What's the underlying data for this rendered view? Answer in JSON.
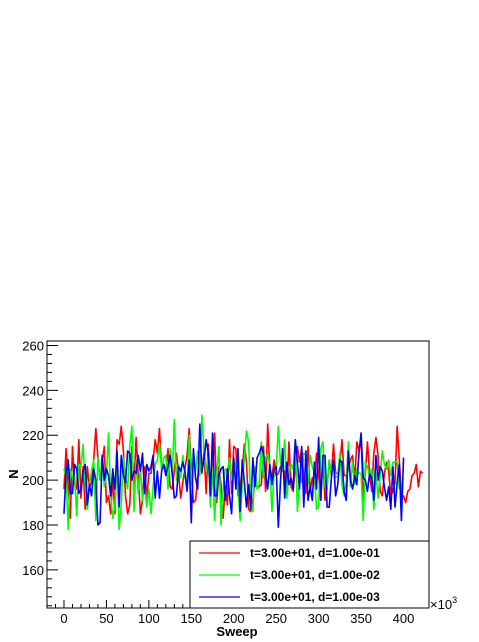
{
  "chart_data": {
    "type": "line",
    "title": "",
    "xlabel": "Sweep",
    "ylabel": "N",
    "x_multiplier": "×10",
    "x_multiplier_exp": "3",
    "xlim": [
      -20,
      430
    ],
    "ylim": [
      143,
      262
    ],
    "x_ticks": [
      0,
      50,
      100,
      150,
      200,
      250,
      300,
      350,
      400
    ],
    "y_ticks": [
      160,
      180,
      200,
      220,
      240,
      260
    ],
    "grid": false,
    "legend_position": "bottom-right",
    "sample_step": 2.5,
    "series": [
      {
        "name": "t=3.00e+01, d=1.00e-01",
        "color": "#ff0000",
        "x_start": 0,
        "values": [
          196,
          214,
          197,
          183,
          215,
          198,
          196,
          218,
          192,
          206,
          187,
          206,
          197,
          199,
          209,
          223,
          210,
          200,
          208,
          215,
          190,
          193,
          185,
          201,
          185,
          218,
          216,
          224,
          213,
          193,
          185,
          189,
          215,
          198,
          219,
          202,
          185,
          191,
          206,
          192,
          203,
          203,
          209,
          218,
          212,
          223,
          205,
          207,
          204,
          214,
          197,
          196,
          204,
          212,
          203,
          192,
          199,
          205,
          211,
          223,
          205,
          190,
          191,
          201,
          206,
          203,
          213,
          194,
          216,
          196,
          202,
          221,
          190,
          206,
          198,
          183,
          197,
          189,
          218,
          194,
          215,
          214,
          193,
          197,
          205,
          216,
          208,
          187,
          186,
          191,
          200,
          197,
          197,
          198,
          215,
          195,
          225,
          205,
          201,
          209,
          202,
          203,
          206,
          204,
          204,
          193,
          217,
          197,
          195,
          206,
          215,
          208,
          214,
          201,
          194,
          215,
          195,
          201,
          198,
          212,
          202,
          191,
          210,
          191,
          197,
          209,
          202,
          216,
          203,
          203,
          207,
          218,
          202,
          202,
          205,
          209,
          211,
          200,
          217,
          213,
          219,
          192,
          203,
          217,
          203,
          195,
          212,
          219,
          211,
          195,
          193,
          203,
          208,
          204,
          193,
          195,
          199,
          224,
          209,
          193,
          193,
          190,
          195,
          196,
          202,
          203,
          207,
          197,
          204,
          203
        ]
      },
      {
        "name": "t=3.00e+01, d=1.00e-02",
        "color": "#00ff00",
        "x_start": 0,
        "values": [
          205,
          201,
          178,
          205,
          201,
          202,
          184,
          207,
          206,
          216,
          197,
          187,
          198,
          204,
          209,
          182,
          210,
          200,
          210,
          197,
          202,
          221,
          193,
          183,
          189,
          208,
          178,
          189,
          210,
          201,
          196,
          215,
          224,
          186,
          209,
          194,
          205,
          191,
          199,
          188,
          196,
          185,
          197,
          207,
          209,
          216,
          205,
          210,
          211,
          196,
          214,
          202,
          227,
          200,
          207,
          201,
          211,
          202,
          196,
          220,
          198,
          210,
          204,
          213,
          202,
          229,
          213,
          204,
          211,
          188,
          206,
          182,
          203,
          215,
          180,
          196,
          205,
          204,
          210,
          200,
          205,
          208,
          197,
          182,
          198,
          210,
          222,
          217,
          190,
          186,
          206,
          196,
          198,
          217,
          201,
          210,
          212,
          206,
          186,
          203,
          205,
          224,
          208,
          204,
          218,
          192,
          203,
          207,
          205,
          218,
          186,
          201,
          199,
          212,
          211,
          198,
          211,
          206,
          203,
          187,
          188,
          214,
          217,
          197,
          196,
          209,
          203,
          206,
          201,
          202,
          212,
          198,
          193,
          199,
          217,
          197,
          208,
          198,
          205,
          203,
          203,
          182,
          208,
          206,
          202,
          205,
          187,
          203,
          192,
          202,
          213,
          207,
          205,
          209,
          202,
          208,
          208,
          208,
          196
        ]
      },
      {
        "name": "t=3.00e+01, d=1.00e-03",
        "color": "#0000ff",
        "x_start": 0,
        "values": [
          185,
          204,
          209,
          194,
          194,
          207,
          205,
          194,
          196,
          204,
          207,
          189,
          198,
          193,
          205,
          200,
          180,
          181,
          211,
          200,
          205,
          202,
          193,
          205,
          196,
          213,
          188,
          211,
          202,
          199,
          213,
          212,
          200,
          204,
          203,
          211,
          204,
          212,
          194,
          207,
          204,
          206,
          211,
          192,
          204,
          192,
          204,
          207,
          202,
          206,
          211,
          203,
          192,
          193,
          206,
          204,
          208,
          204,
          195,
          209,
          181,
          214,
          201,
          196,
          225,
          204,
          209,
          218,
          212,
          193,
          221,
          193,
          193,
          202,
          205,
          206,
          191,
          205,
          193,
          185,
          210,
          196,
          214,
          186,
          209,
          199,
          188,
          198,
          187,
          210,
          197,
          210,
          212,
          215,
          212,
          203,
          196,
          207,
          198,
          205,
          206,
          179,
          199,
          214,
          192,
          208,
          198,
          201,
          196,
          218,
          208,
          196,
          215,
          188,
          213,
          191,
          197,
          191,
          208,
          196,
          219,
          191,
          211,
          211,
          188,
          188,
          201,
          209,
          193,
          198,
          209,
          208,
          195,
          191,
          213,
          200,
          196,
          202,
          198,
          212,
          221,
          201,
          200,
          195,
          203,
          201,
          191,
          211,
          200,
          206,
          204,
          197,
          191,
          197,
          187,
          206,
          188,
          199,
          207,
          182,
          210
        ]
      }
    ]
  }
}
